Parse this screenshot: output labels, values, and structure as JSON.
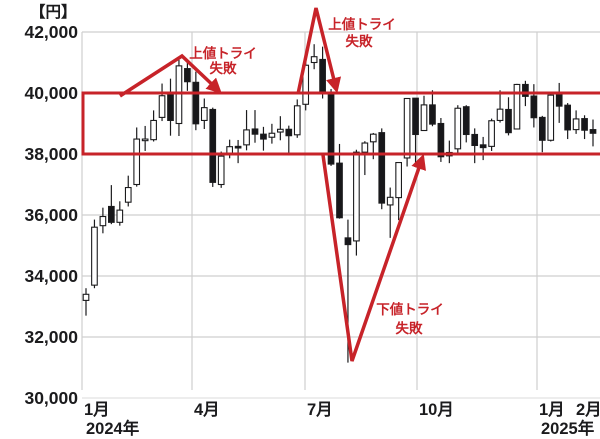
{
  "chart_data": {
    "type": "candlestick",
    "unit_label": "【円】",
    "y_axis": {
      "min": 30000,
      "max": 42000,
      "tick_step": 2000,
      "ticks": [
        {
          "value": 42000,
          "label": "42,000"
        },
        {
          "value": 40000,
          "label": "40,000"
        },
        {
          "value": 38000,
          "label": "38,000"
        },
        {
          "value": 36000,
          "label": "36,000"
        },
        {
          "value": 34000,
          "label": "34,000"
        },
        {
          "value": 32000,
          "label": "32,000"
        },
        {
          "value": 30000,
          "label": "30,000"
        }
      ]
    },
    "x_axis": {
      "ticks": [
        {
          "label": "1月",
          "sub": "2024年"
        },
        {
          "label": "4月",
          "sub": ""
        },
        {
          "label": "7月",
          "sub": ""
        },
        {
          "label": "10月",
          "sub": ""
        },
        {
          "label": "1月",
          "sub": "2025年"
        },
        {
          "label": "2月",
          "sub": ""
        }
      ]
    },
    "range_box": {
      "top_value": 40000,
      "bottom_value": 38000
    },
    "annotations": [
      {
        "id": "upper-try-1",
        "lines": [
          "上値トライ",
          "失敗"
        ],
        "points": [
          [
            120,
            96
          ],
          [
            182,
            56
          ],
          [
            218,
            90
          ]
        ],
        "text_pos": [
          [
            223,
            58
          ],
          [
            223,
            73
          ]
        ]
      },
      {
        "id": "upper-try-2",
        "lines": [
          "上値トライ",
          "失敗"
        ],
        "points": [
          [
            298,
            94
          ],
          [
            316,
            8
          ],
          [
            336,
            88
          ]
        ],
        "text_pos": [
          [
            362,
            29
          ],
          [
            359,
            46
          ]
        ]
      },
      {
        "id": "lower-try",
        "lines": [
          "下値トライ",
          "失敗"
        ],
        "points": [
          [
            323,
            155
          ],
          [
            352,
            361
          ],
          [
            422,
            159
          ]
        ],
        "text_pos": [
          [
            410,
            314
          ],
          [
            409,
            333
          ]
        ]
      }
    ],
    "colors": {
      "annotation_red": "#c72329",
      "candle_up": "#ffffff",
      "candle_down": "#17171a",
      "candle_outline": "#1b1b1d",
      "grid": "#cfcfcf",
      "text": "#1b1b1d"
    },
    "candles_ohlc": [
      [
        33200,
        33600,
        32700,
        33400
      ],
      [
        33700,
        35850,
        33600,
        35600
      ],
      [
        35650,
        36240,
        35400,
        35950
      ],
      [
        36280,
        36980,
        35700,
        35760
      ],
      [
        35760,
        36450,
        35650,
        36160
      ],
      [
        36420,
        37290,
        36280,
        36900
      ],
      [
        37000,
        38870,
        36930,
        38490
      ],
      [
        38470,
        38920,
        38100,
        38490
      ],
      [
        38470,
        39430,
        38410,
        39100
      ],
      [
        39200,
        40310,
        39080,
        39910
      ],
      [
        39950,
        40470,
        38600,
        39100
      ],
      [
        39000,
        41090,
        38590,
        40890
      ],
      [
        40800,
        41090,
        40070,
        40370
      ],
      [
        40350,
        40700,
        38780,
        38990
      ],
      [
        39100,
        39820,
        38820,
        39520
      ],
      [
        39460,
        39520,
        36920,
        37070
      ],
      [
        37000,
        38080,
        36890,
        37930
      ],
      [
        37990,
        38470,
        37860,
        38240
      ],
      [
        38250,
        38460,
        37700,
        38230
      ],
      [
        38300,
        39440,
        38120,
        38790
      ],
      [
        38820,
        39440,
        38370,
        38650
      ],
      [
        38650,
        38890,
        38110,
        38490
      ],
      [
        38550,
        38990,
        38340,
        38680
      ],
      [
        38720,
        39240,
        38450,
        38810
      ],
      [
        38810,
        38930,
        37950,
        38600
      ],
      [
        38630,
        39790,
        38530,
        39580
      ],
      [
        39630,
        41100,
        39430,
        40910
      ],
      [
        41000,
        41600,
        40780,
        41190
      ],
      [
        41100,
        41520,
        39820,
        40060
      ],
      [
        40000,
        40130,
        37610,
        37670
      ],
      [
        37700,
        38330,
        35880,
        35910
      ],
      [
        35250,
        35850,
        31160,
        35030
      ],
      [
        35150,
        38140,
        34670,
        38060
      ],
      [
        38060,
        38420,
        37310,
        38360
      ],
      [
        38400,
        38690,
        37830,
        38650
      ],
      [
        38700,
        38840,
        36190,
        36390
      ],
      [
        36330,
        36900,
        35250,
        36580
      ],
      [
        36570,
        37730,
        35830,
        37720
      ],
      [
        37870,
        39830,
        37590,
        39820
      ],
      [
        39830,
        39830,
        37650,
        38640
      ],
      [
        38770,
        39910,
        38770,
        39610
      ],
      [
        39610,
        40090,
        38910,
        38980
      ],
      [
        39000,
        39180,
        37740,
        37910
      ],
      [
        37940,
        38440,
        37700,
        38050
      ],
      [
        38170,
        39600,
        38040,
        39500
      ],
      [
        39550,
        39600,
        38380,
        38640
      ],
      [
        38640,
        38840,
        37700,
        38280
      ],
      [
        38300,
        38560,
        37800,
        38210
      ],
      [
        38250,
        39160,
        38100,
        39090
      ],
      [
        39100,
        40090,
        39030,
        39470
      ],
      [
        39460,
        39860,
        38610,
        38700
      ],
      [
        38820,
        40300,
        38810,
        40280
      ],
      [
        40280,
        40400,
        39570,
        39890
      ],
      [
        39900,
        40290,
        38870,
        39190
      ],
      [
        39200,
        39250,
        38060,
        38450
      ],
      [
        38450,
        40040,
        38410,
        39930
      ],
      [
        39940,
        40330,
        39020,
        39570
      ],
      [
        39600,
        39670,
        38490,
        38790
      ],
      [
        38800,
        39430,
        38660,
        39150
      ],
      [
        39160,
        39270,
        38490,
        38780
      ],
      [
        38800,
        39130,
        38250,
        38680
      ]
    ]
  }
}
